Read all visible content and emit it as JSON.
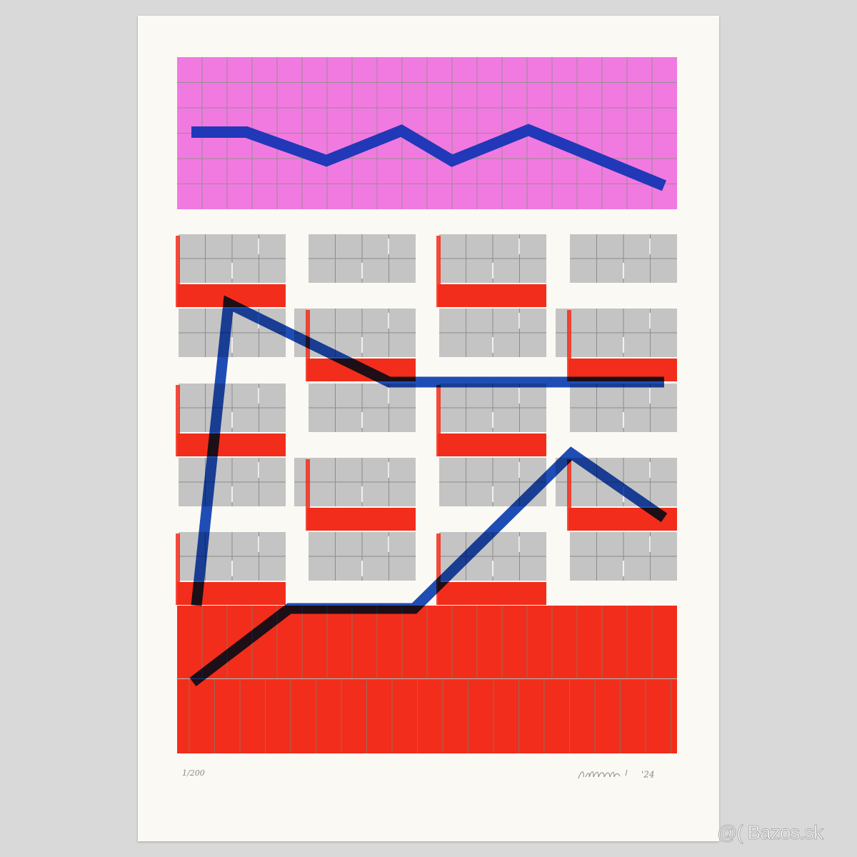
{
  "artwork": {
    "edition_number": "1/200",
    "signature_year": "'24",
    "colors": {
      "pink": "#f17ae0",
      "blue": "#1f4fbf",
      "red": "#f22d1b",
      "grey": "#c4c4c4",
      "paper": "#fbf9f3"
    }
  },
  "watermark": "@( Bazos.sk"
}
